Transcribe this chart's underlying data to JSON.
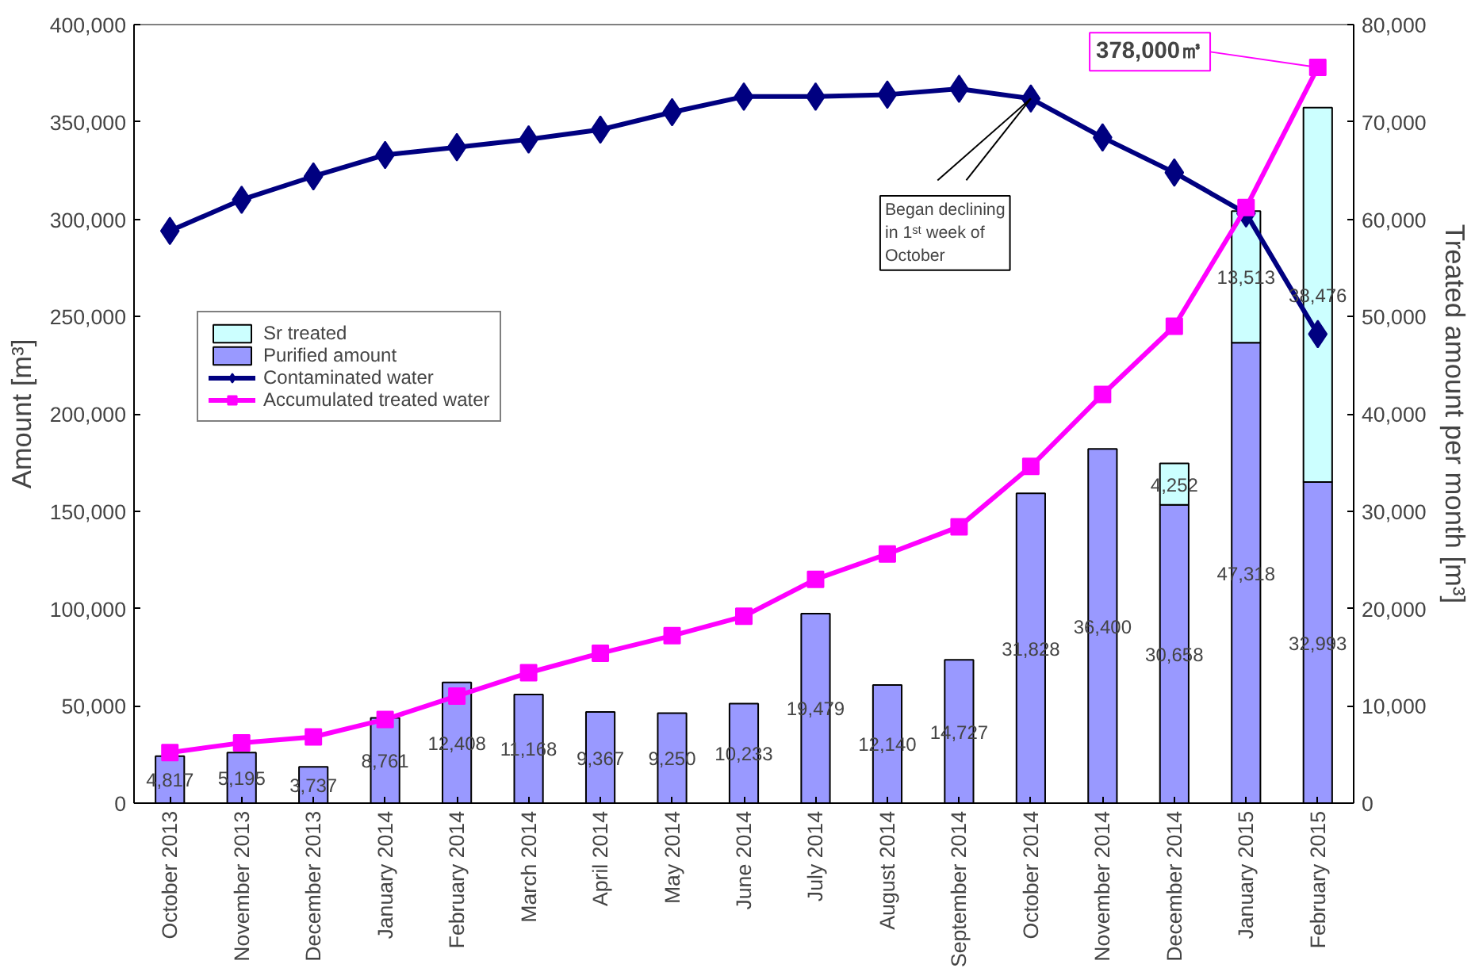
{
  "chart_data": {
    "type": "bar",
    "stacked": true,
    "categories": [
      "October 2013",
      "November 2013",
      "December 2013",
      "January 2014",
      "February 2014",
      "March 2014",
      "April 2014",
      "May 2014",
      "June 2014",
      "July 2014",
      "August 2014",
      "September 2014",
      "October 2014",
      "November 2014",
      "December 2014",
      "January 2015",
      "February 2015"
    ],
    "ylabel": "Amount [m³]",
    "y2label": "Treated amount per month [m³]",
    "ylim": [
      0,
      400000
    ],
    "yticks": [
      {
        "value": 0,
        "label": "0"
      },
      {
        "value": 50000,
        "label": "50,000"
      },
      {
        "value": 100000,
        "label": "100,000"
      },
      {
        "value": 150000,
        "label": "150,000"
      },
      {
        "value": 200000,
        "label": "200,000"
      },
      {
        "value": 250000,
        "label": "250,000"
      },
      {
        "value": 300000,
        "label": "300,000"
      },
      {
        "value": 350000,
        "label": "350,000"
      },
      {
        "value": 400000,
        "label": "400,000"
      }
    ],
    "y2lim": [
      0,
      80000
    ],
    "y2ticks": [
      {
        "value": 0,
        "label": "0"
      },
      {
        "value": 10000,
        "label": "10,000"
      },
      {
        "value": 20000,
        "label": "20,000"
      },
      {
        "value": 30000,
        "label": "30,000"
      },
      {
        "value": 40000,
        "label": "40,000"
      },
      {
        "value": 50000,
        "label": "50,000"
      },
      {
        "value": 60000,
        "label": "60,000"
      },
      {
        "value": 70000,
        "label": "70,000"
      },
      {
        "value": 80000,
        "label": "80,000"
      }
    ],
    "series": [
      {
        "name": "Purified amount",
        "axis": "y2",
        "color": "#9999ff",
        "values": [
          4817,
          5195,
          3737,
          8761,
          12408,
          11168,
          9367,
          9250,
          10233,
          19479,
          12140,
          14727,
          31828,
          36400,
          30658,
          47318,
          32993
        ],
        "value_labels": [
          "4,817",
          "5,195",
          "3,737",
          "8,761",
          "12,408",
          "11,168",
          "9,367",
          "9,250",
          "10,233",
          "19,479",
          "12,140",
          "14,727",
          "31,828",
          "36,400",
          "30,658",
          "47,318",
          "32,993"
        ]
      },
      {
        "name": "Sr treated",
        "axis": "y2",
        "color": "#ccffff",
        "values": [
          null,
          null,
          null,
          null,
          null,
          null,
          null,
          null,
          null,
          null,
          null,
          null,
          null,
          null,
          4252,
          13513,
          38476
        ],
        "value_labels": [
          null,
          null,
          null,
          null,
          null,
          null,
          null,
          null,
          null,
          null,
          null,
          null,
          null,
          null,
          "4,252",
          "13,513",
          "38,476"
        ]
      },
      {
        "name": "Contaminated water",
        "type": "line",
        "color": "#000080",
        "marker": "diamond",
        "values": [
          294000,
          310000,
          322000,
          333000,
          337000,
          341000,
          346000,
          355000,
          363000,
          363000,
          364000,
          367000,
          362000,
          342000,
          324000,
          303000,
          241000
        ]
      },
      {
        "name": "Accumulated treated water",
        "type": "line",
        "color": "#ff00ff",
        "marker": "square",
        "values": [
          26000,
          31000,
          34000,
          43000,
          55000,
          67000,
          77000,
          86000,
          96000,
          115000,
          128000,
          142000,
          173000,
          210000,
          245000,
          306000,
          378000
        ]
      }
    ],
    "legend": "left",
    "annotations": [
      {
        "text": "378,000㎥",
        "x": "February 2015",
        "y": 378000
      },
      {
        "text": "Began declining in 1ˢᵗ week of October",
        "x": "October 2014",
        "y": 362000
      }
    ]
  }
}
